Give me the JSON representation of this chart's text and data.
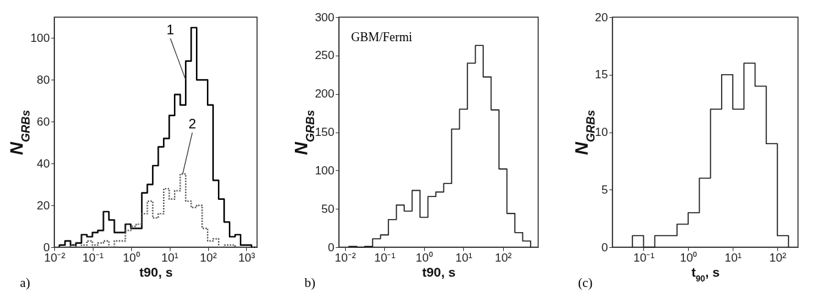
{
  "chart_data": [
    {
      "type": "histogram",
      "xlabel": "t90, s",
      "ylabel": "N$_{GRBs}$",
      "log": "x",
      "grid": false,
      "bins": [
        0.0136,
        0.019,
        0.0264,
        0.0366,
        0.0509,
        0.0707,
        0.0982,
        0.136,
        0.19,
        0.264,
        0.366,
        0.509,
        0.707,
        0.982,
        1.36,
        1.9,
        2.64,
        3.66,
        5.09,
        7.07,
        9.82,
        13.6,
        19,
        26.4,
        36.6,
        50.9,
        70.7,
        98.2,
        136,
        190,
        264,
        366,
        509,
        707,
        982,
        1360,
        1900
      ],
      "series": [
        {
          "color": "#000000",
          "line_style": "solid",
          "values": [
            1,
            3,
            1,
            2,
            6,
            5,
            7,
            8,
            17,
            13,
            7,
            7,
            11,
            9,
            9,
            26,
            30,
            39,
            48,
            52,
            63,
            73,
            68,
            89,
            105,
            80,
            80,
            68,
            32,
            23,
            12,
            5,
            6,
            1,
            1,
            0
          ]
        },
        {
          "color": "#555555",
          "line_style": "dotted",
          "values": [
            0,
            0,
            1,
            0,
            1,
            3,
            1,
            2,
            3,
            0,
            3,
            3,
            8,
            10,
            11,
            16,
            22,
            14,
            16,
            28,
            23,
            27,
            35,
            22,
            19,
            20,
            9,
            3,
            4,
            0,
            1,
            1,
            0,
            0,
            0,
            0
          ]
        }
      ],
      "xlim": [
        0.01,
        1900
      ],
      "ylim": [
        0,
        110
      ],
      "xticks": [
        {
          "value": 0.01,
          "label": "10⁻²"
        },
        {
          "value": 0.1,
          "label": "10⁻¹"
        },
        {
          "value": 1,
          "label": "10⁰"
        },
        {
          "value": 10,
          "label": "10¹"
        },
        {
          "value": 100,
          "label": "10²"
        },
        {
          "value": 1000,
          "label": "10³"
        }
      ],
      "yticks": [
        0,
        20,
        40,
        60,
        80,
        100
      ],
      "annotations": [
        "a)",
        {
          "text": "1",
          "x": 26.4,
          "y": 80
        },
        {
          "text": "2",
          "x": 22,
          "y": 35
        }
      ]
    },
    {
      "type": "histogram",
      "title": "GBM/Fermi",
      "xlabel": "t90, s",
      "ylabel": "N$_{GRBs}$",
      "log": "x",
      "grid": false,
      "bins": [
        0.0126,
        0.02,
        0.0316,
        0.0501,
        0.0794,
        0.126,
        0.2,
        0.316,
        0.501,
        0.794,
        1.26,
        2,
        3.16,
        5.01,
        7.94,
        12.6,
        20,
        31.6,
        50.1,
        79.4,
        126,
        200,
        316,
        501
      ],
      "series": [
        {
          "color": "#222222",
          "line_style": "solid",
          "values": [
            1,
            0,
            1,
            11,
            16,
            36,
            55,
            47,
            74,
            39,
            66,
            72,
            83,
            154,
            180,
            240,
            263,
            222,
            179,
            102,
            44,
            19,
            8
          ]
        }
      ],
      "xlim": [
        0.007,
        780
      ],
      "ylim": [
        0,
        300
      ],
      "xticks": [
        {
          "value": 0.01,
          "label": "10⁻²"
        },
        {
          "value": 0.1,
          "label": "10⁻¹"
        },
        {
          "value": 1,
          "label": "10⁰"
        },
        {
          "value": 10,
          "label": "10¹"
        },
        {
          "value": 100,
          "label": "10²"
        }
      ],
      "yticks": [
        0,
        50,
        100,
        150,
        200,
        250,
        300
      ],
      "annotations": [
        "b)"
      ]
    },
    {
      "type": "histogram",
      "xlabel": "t$_{90}$, s",
      "ylabel": "N$_{GRBs}$",
      "log": "x",
      "grid": false,
      "bins": [
        0.0562,
        0.1,
        0.178,
        0.316,
        0.562,
        1,
        1.78,
        3.16,
        5.62,
        10,
        17.8,
        31.6,
        56.2,
        100,
        178
      ],
      "series": [
        {
          "color": "#222222",
          "line_style": "solid",
          "values": [
            1,
            0,
            1,
            1,
            2,
            3,
            6,
            12,
            15,
            12,
            16,
            14,
            9,
            1
          ]
        }
      ],
      "xlim": [
        0.02,
        290
      ],
      "ylim": [
        0,
        20
      ],
      "xticks": [
        {
          "value": 0.1,
          "label": "10⁻¹"
        },
        {
          "value": 1,
          "label": "10⁰"
        },
        {
          "value": 10,
          "label": "10¹"
        },
        {
          "value": 100,
          "label": "10²"
        }
      ],
      "yticks": [
        0,
        5,
        10,
        15,
        20
      ],
      "annotations": [
        "(c)"
      ]
    }
  ]
}
